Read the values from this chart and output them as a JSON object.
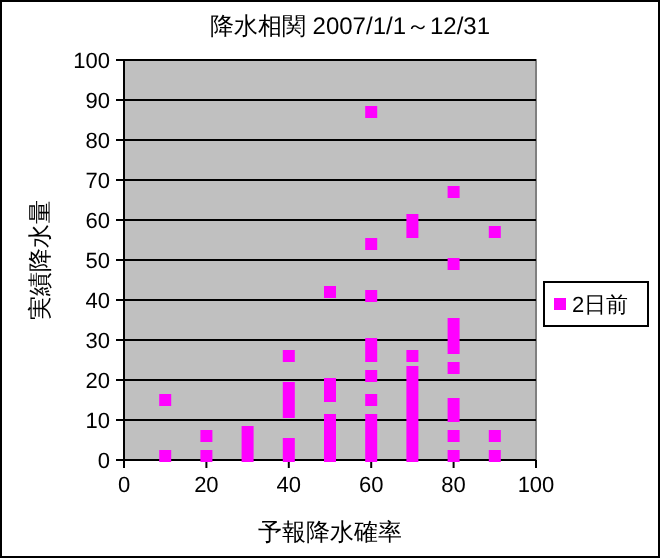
{
  "chart_data": {
    "type": "scatter",
    "title": "降水相関  2007/1/1～12/31",
    "xlabel": "予報降水確率",
    "ylabel": "実績降水量",
    "series": [
      {
        "name": "2日前",
        "color": "#ff00ff",
        "x": [
          10,
          10,
          20,
          20,
          30,
          30,
          30,
          40,
          40,
          40,
          40,
          40,
          40,
          50,
          50,
          50,
          50,
          50,
          50,
          50,
          60,
          60,
          60,
          60,
          60,
          60,
          60,
          60,
          60,
          60,
          60,
          70,
          70,
          70,
          70,
          70,
          70,
          70,
          70,
          70,
          70,
          70,
          80,
          80,
          80,
          80,
          80,
          80,
          80,
          80,
          80,
          80,
          90,
          90,
          90
        ],
        "values": [
          1,
          15,
          1,
          6,
          1,
          4,
          7,
          1,
          4,
          12,
          15,
          18,
          26,
          1,
          4,
          7,
          10,
          16,
          19,
          42,
          1,
          4,
          7,
          10,
          15,
          21,
          26,
          29,
          41,
          54,
          87,
          1,
          4,
          7,
          10,
          13,
          16,
          19,
          22,
          26,
          57,
          60,
          1,
          6,
          11,
          14,
          23,
          28,
          31,
          34,
          49,
          67,
          1,
          6,
          57
        ]
      }
    ],
    "xlim": [
      0,
      100
    ],
    "xticks": [
      0,
      20,
      40,
      60,
      80,
      100
    ],
    "ylim": [
      0,
      100
    ],
    "yticks": [
      0,
      10,
      20,
      30,
      40,
      50,
      60,
      70,
      80,
      90,
      100
    ],
    "grid": "y",
    "legend": "right",
    "marker": "square"
  }
}
